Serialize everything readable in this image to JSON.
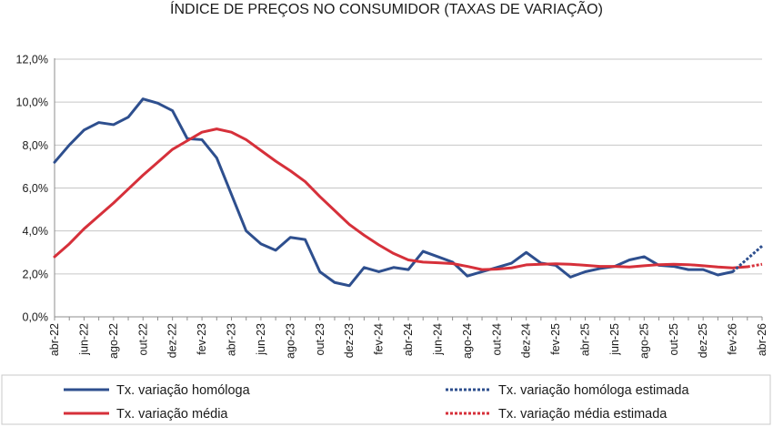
{
  "chart_data": {
    "type": "line",
    "title": "ÍNDICE DE PREÇOS NO CONSUMIDOR (TAXAS DE VARIAÇÃO)",
    "xlabel": "",
    "ylabel": "",
    "ylim": [
      0,
      12
    ],
    "y_ticks": [
      0,
      2,
      4,
      6,
      8,
      10,
      12
    ],
    "y_tick_labels": [
      "0,0%",
      "2,0%",
      "4,0%",
      "6,0%",
      "8,0%",
      "10,0%",
      "12,0%"
    ],
    "grid": "horizontal",
    "legend_position": "bottom",
    "categories": [
      "abr-22",
      "mai-22",
      "jun-22",
      "jul-22",
      "ago-22",
      "set-22",
      "out-22",
      "nov-22",
      "dez-22",
      "jan-23",
      "fev-23",
      "mar-23",
      "abr-23",
      "mai-23",
      "jun-23",
      "jul-23",
      "ago-23",
      "set-23",
      "out-23",
      "nov-23",
      "dez-23",
      "jan-24",
      "fev-24",
      "mar-24",
      "abr-24",
      "mai-24",
      "jun-24",
      "jul-24",
      "ago-24",
      "set-24",
      "out-24",
      "nov-24",
      "dez-24",
      "jan-25",
      "fev-25",
      "mar-25",
      "abr-25",
      "mai-25",
      "jun-25",
      "jul-25",
      "ago-25",
      "set-25",
      "out-25",
      "nov-25",
      "dez-25",
      "jan-26",
      "fev-26",
      "mar-26",
      "abr-26"
    ],
    "x_tick_labels": [
      "abr-22",
      "jun-22",
      "ago-22",
      "out-22",
      "dez-22",
      "fev-23",
      "abr-23",
      "jun-23",
      "ago-23",
      "out-23",
      "dez-23",
      "fev-24",
      "abr-24",
      "jun-24",
      "ago-24",
      "out-24",
      "dez-24",
      "fev-25",
      "abr-25",
      "jun-25",
      "ago-25",
      "out-25",
      "dez-25",
      "fev-26",
      "abr-26"
    ],
    "series": [
      {
        "name": "Tx. variação homóloga",
        "color": "#2e4f8e",
        "style": "solid",
        "values": [
          7.2,
          8.0,
          8.7,
          9.05,
          8.95,
          9.3,
          10.15,
          9.95,
          9.6,
          8.3,
          8.25,
          7.4,
          5.7,
          4.0,
          3.4,
          3.1,
          3.7,
          3.6,
          2.1,
          1.6,
          1.45,
          2.3,
          2.1,
          2.3,
          2.2,
          3.05,
          2.8,
          2.55,
          1.9,
          2.1,
          2.3,
          2.5,
          3.0,
          2.5,
          2.4,
          1.85,
          2.1,
          2.25,
          2.35,
          2.65,
          2.8,
          2.4,
          2.35,
          2.2,
          2.2,
          1.95,
          2.1,
          null,
          null
        ]
      },
      {
        "name": "Tx. variação média",
        "color": "#d6303a",
        "style": "solid",
        "values": [
          2.8,
          3.4,
          4.1,
          4.7,
          5.3,
          5.95,
          6.6,
          7.2,
          7.8,
          8.2,
          8.6,
          8.75,
          8.6,
          8.25,
          7.75,
          7.25,
          6.8,
          6.3,
          5.6,
          4.95,
          4.3,
          3.8,
          3.35,
          2.95,
          2.65,
          2.55,
          2.52,
          2.48,
          2.35,
          2.2,
          2.22,
          2.28,
          2.42,
          2.45,
          2.47,
          2.45,
          2.4,
          2.35,
          2.35,
          2.32,
          2.38,
          2.43,
          2.45,
          2.43,
          2.38,
          2.32,
          2.28,
          2.33,
          null
        ]
      },
      {
        "name": "Tx. variação homóloga estimada",
        "color": "#2e4f8e",
        "style": "dotted",
        "values": [
          null,
          null,
          null,
          null,
          null,
          null,
          null,
          null,
          null,
          null,
          null,
          null,
          null,
          null,
          null,
          null,
          null,
          null,
          null,
          null,
          null,
          null,
          null,
          null,
          null,
          null,
          null,
          null,
          null,
          null,
          null,
          null,
          null,
          null,
          null,
          null,
          null,
          null,
          null,
          null,
          null,
          null,
          null,
          null,
          null,
          null,
          2.1,
          2.7,
          3.3
        ]
      },
      {
        "name": "Tx. variação média  estimada",
        "color": "#d6303a",
        "style": "dotted",
        "values": [
          null,
          null,
          null,
          null,
          null,
          null,
          null,
          null,
          null,
          null,
          null,
          null,
          null,
          null,
          null,
          null,
          null,
          null,
          null,
          null,
          null,
          null,
          null,
          null,
          null,
          null,
          null,
          null,
          null,
          null,
          null,
          null,
          null,
          null,
          null,
          null,
          null,
          null,
          null,
          null,
          null,
          null,
          null,
          null,
          null,
          null,
          null,
          2.33,
          2.45
        ]
      }
    ]
  }
}
